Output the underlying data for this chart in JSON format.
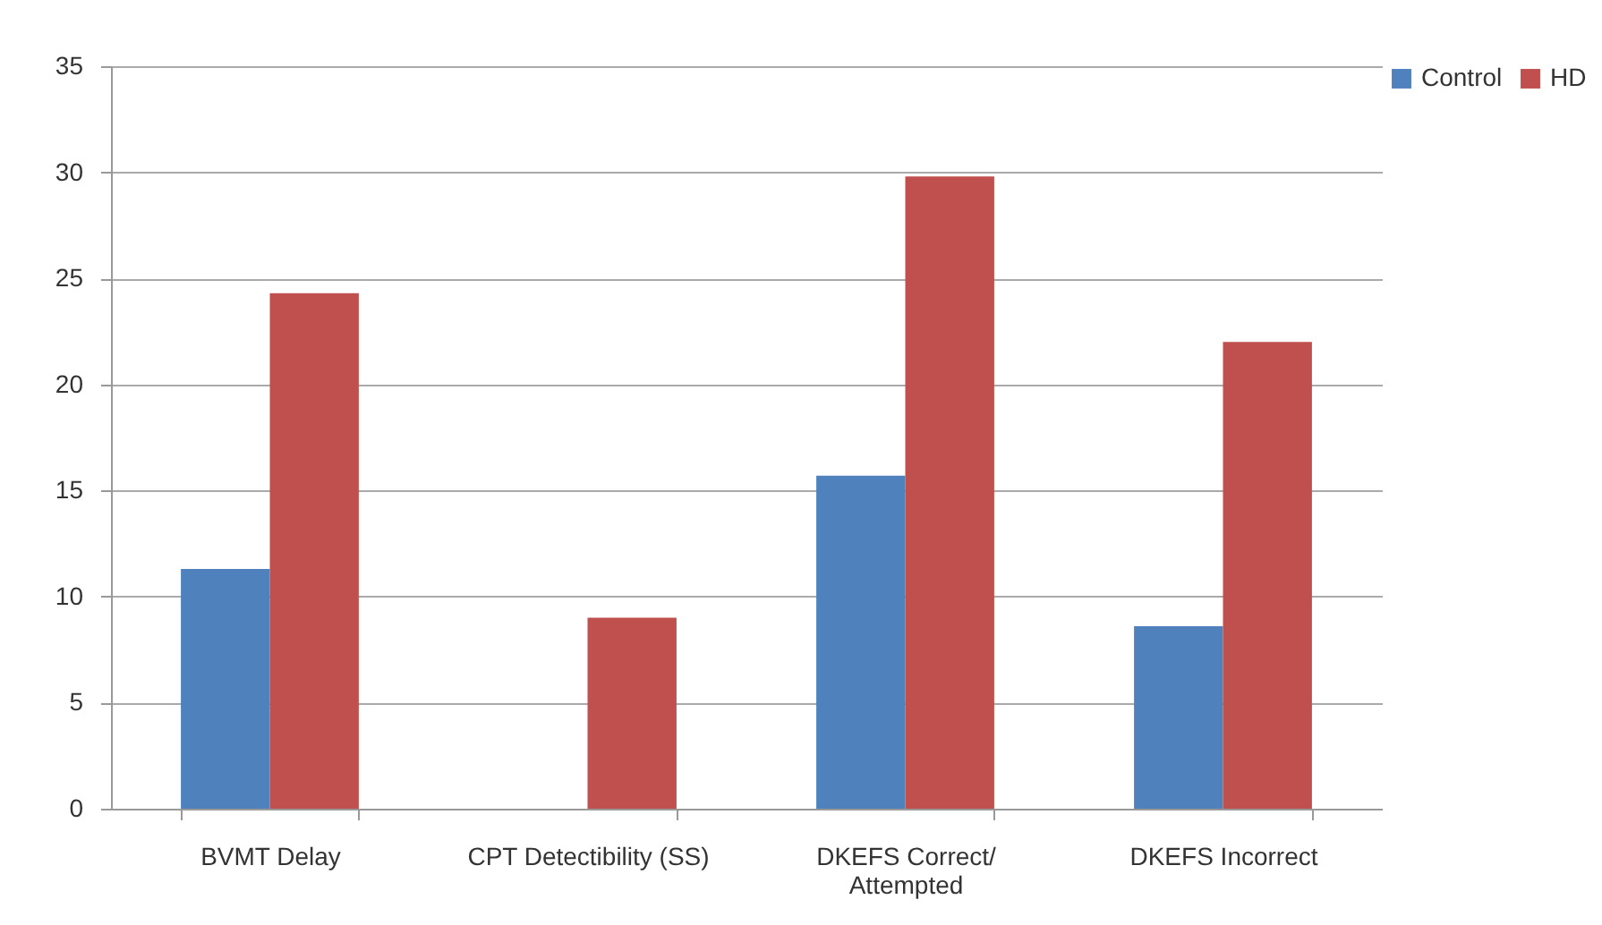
{
  "chart_data": {
    "type": "bar",
    "categories": [
      "BVMT Delay",
      "CPT Detectibility (SS)",
      "DKEFS Correct/ Attempted",
      "DKEFS Incorrect"
    ],
    "series": [
      {
        "name": "Control",
        "color": "#4f81bd",
        "values": [
          11.3,
          null,
          15.7,
          8.6
        ]
      },
      {
        "name": "HD",
        "color": "#c0504d",
        "values": [
          24.3,
          9.0,
          29.8,
          22.0
        ]
      }
    ],
    "ylim": [
      0,
      35
    ],
    "yticks": [
      0,
      5,
      10,
      15,
      20,
      25,
      30,
      35
    ],
    "grid": "y",
    "legend": "right"
  }
}
